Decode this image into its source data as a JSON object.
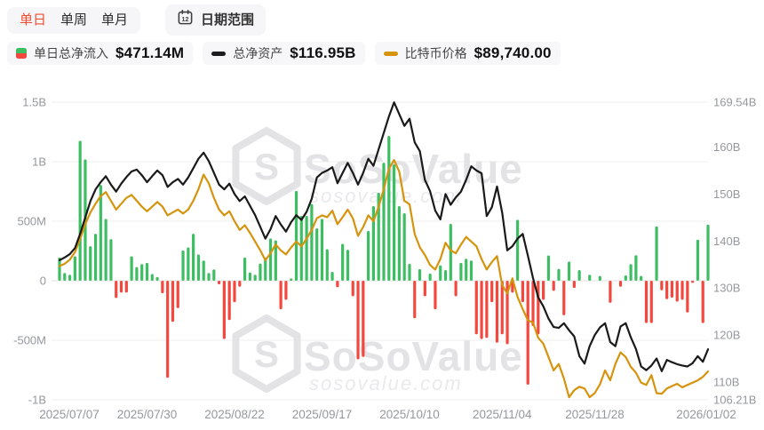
{
  "tabs": {
    "daily": "单日",
    "weekly": "单周",
    "monthly": "单月"
  },
  "date_range": {
    "label": "日期范围",
    "calendar_icon_day": "12"
  },
  "legend": [
    {
      "label": "单日总净流入",
      "value": "$471.14M",
      "marker": "green-red-square"
    },
    {
      "label": "总净资产",
      "value": "$116.95B",
      "marker": "black-dash"
    },
    {
      "label": "比特币价格",
      "value": "$89,740.00",
      "marker": "gold-dash"
    }
  ],
  "watermark": {
    "brand": "SoSoValue",
    "domain": "sosovalue.com"
  },
  "colors": {
    "inflow_green": "#3ebe62",
    "outflow_red": "#f4483f",
    "assets_line": "#1a1a1a",
    "price_line": "#d6940e",
    "tab_active": "#ee4e30",
    "axis_text": "#95989d",
    "grid": "#efefef",
    "zero_grid": "#e2e2e2",
    "chip_bg": "#f7f7f9",
    "watermark_gray": "#e3e3e6"
  },
  "chart_data": {
    "type": "combo-bar-line",
    "title": "Bitcoin ETF daily total net inflow / total net assets / BTC price",
    "x_labels": [
      "2025/07/07",
      "2025/07/30",
      "2025/08/22",
      "2025/09/17",
      "2025/10/10",
      "2025/11/04",
      "2025/11/28",
      "2026/01/02"
    ],
    "x_label_indices": [
      0,
      17,
      34,
      51,
      68,
      86,
      104,
      126
    ],
    "left_axis": {
      "unit": "USD",
      "ticks": [
        "1.5B",
        "1B",
        "500M",
        "0",
        "-500M",
        "-1B"
      ],
      "values": [
        1500,
        1000,
        500,
        0,
        -500,
        -1000
      ]
    },
    "right_axis": {
      "unit": "USD-B",
      "ticks": [
        "169.54B",
        "160B",
        "150B",
        "140B",
        "130B",
        "120B",
        "110B",
        "106.21B"
      ],
      "values": [
        169.54,
        160,
        150,
        140,
        130,
        120,
        110,
        106.21
      ],
      "min": 106.21,
      "max": 169.54
    },
    "price_scale": {
      "min": 84860,
      "max": 135920
    },
    "grid": "horizontal-only",
    "series": [
      {
        "name": "单日总净流入",
        "type": "bar",
        "unit": "M USD",
        "values": [
          195,
          65,
          50,
          205,
          1175,
          1020,
          290,
          395,
          805,
          520,
          350,
          -145,
          -100,
          -100,
          205,
          115,
          140,
          150,
          57,
          32,
          -105,
          -815,
          -345,
          -230,
          255,
          280,
          395,
          220,
          170,
          65,
          95,
          -30,
          -490,
          -330,
          -180,
          -50,
          195,
          70,
          50,
          145,
          195,
          355,
          340,
          -240,
          -160,
          20,
          755,
          545,
          545,
          645,
          440,
          520,
          265,
          75,
          -55,
          310,
          260,
          -130,
          -660,
          -640,
          418,
          627,
          739,
          992,
          1216,
          977,
          627,
          567,
          142,
          -315,
          98,
          -130,
          60,
          -240,
          130,
          90,
          478,
          -130,
          150,
          185,
          170,
          -450,
          -490,
          -480,
          -180,
          -520,
          -450,
          -533,
          -100,
          512,
          -180,
          -873,
          -380,
          -450,
          -160,
          213,
          -85,
          100,
          -290,
          160,
          -60,
          90,
          0,
          50,
          0,
          40,
          0,
          -185,
          0,
          -50,
          45,
          140,
          215,
          40,
          -355,
          -355,
          457,
          -80,
          -155,
          -142,
          -175,
          -160,
          -267,
          -17,
          345,
          -355,
          471
        ]
      },
      {
        "name": "总净资产",
        "type": "line",
        "unit": "B USD",
        "values": [
          135.9,
          136.5,
          137.2,
          138.5,
          141.5,
          145.0,
          148.5,
          151.0,
          152.5,
          153.8,
          152.0,
          150.5,
          152.2,
          153.6,
          154.8,
          155.2,
          154.0,
          152.5,
          153.8,
          155.0,
          154.0,
          151.5,
          152.5,
          153.2,
          152.0,
          153.5,
          155.5,
          157.5,
          158.8,
          157.0,
          154.5,
          152.0,
          151.0,
          152.2,
          150.0,
          148.5,
          149.5,
          147.5,
          145.5,
          143.0,
          140.5,
          142.5,
          145.3,
          143.5,
          142.0,
          144.0,
          145.5,
          144.5,
          146.2,
          149.0,
          153.5,
          154.5,
          155.0,
          155.7,
          152.3,
          154.5,
          156.6,
          154.5,
          152.0,
          154.5,
          157.5,
          156.0,
          159.5,
          163.0,
          166.5,
          169.5,
          167.0,
          164.5,
          166.0,
          161.0,
          159.1,
          153.0,
          150.6,
          146.5,
          144.6,
          150.0,
          147.7,
          149.3,
          150.5,
          153.0,
          155.9,
          155.0,
          154.4,
          145.3,
          147.2,
          151.6,
          146.0,
          138.0,
          138.9,
          140.5,
          141.5,
          136.9,
          132.1,
          128.0,
          126.1,
          123.5,
          121.7,
          121.5,
          122.5,
          121.0,
          119.7,
          115.5,
          113.9,
          117.6,
          120.0,
          121.6,
          122.5,
          118.5,
          117.6,
          121.8,
          122.5,
          119.5,
          117.0,
          113.3,
          112.5,
          113.5,
          115.0,
          112.3,
          114.7,
          114.2,
          113.8,
          113.5,
          113.3,
          114.0,
          115.5,
          114.3,
          116.95
        ]
      },
      {
        "name": "比特币价格",
        "type": "line",
        "unit": "USD",
        "values": [
          107800,
          108200,
          108900,
          110200,
          112500,
          115000,
          117000,
          118500,
          119800,
          120500,
          119000,
          117500,
          118500,
          119500,
          120000,
          119000,
          118000,
          117200,
          118000,
          118800,
          118000,
          116500,
          117000,
          117500,
          116800,
          117500,
          119000,
          121000,
          123500,
          122000,
          119500,
          117500,
          116500,
          117200,
          115500,
          114000,
          114800,
          113500,
          112000,
          110500,
          108800,
          110000,
          111500,
          110500,
          109800,
          111000,
          112000,
          111200,
          112500,
          114000,
          116000,
          116500,
          116200,
          117300,
          115000,
          116200,
          117500,
          116000,
          113000,
          114500,
          116500,
          115500,
          118000,
          121000,
          124500,
          126000,
          124000,
          119000,
          118400,
          113300,
          111000,
          109700,
          108000,
          107200,
          109000,
          111800,
          110500,
          110000,
          111500,
          112800,
          112000,
          111200,
          109000,
          107200,
          108500,
          109500,
          104500,
          103100,
          105700,
          102500,
          100400,
          98500,
          98100,
          95500,
          94500,
          92200,
          89900,
          91000,
          88500,
          85300,
          86500,
          87100,
          86800,
          85300,
          86000,
          87500,
          89900,
          88200,
          91000,
          93000,
          92200,
          90500,
          89500,
          87800,
          87400,
          89100,
          86000,
          85900,
          86800,
          87200,
          87600,
          87000,
          87400,
          87800,
          88200,
          88800,
          89740
        ]
      }
    ]
  }
}
